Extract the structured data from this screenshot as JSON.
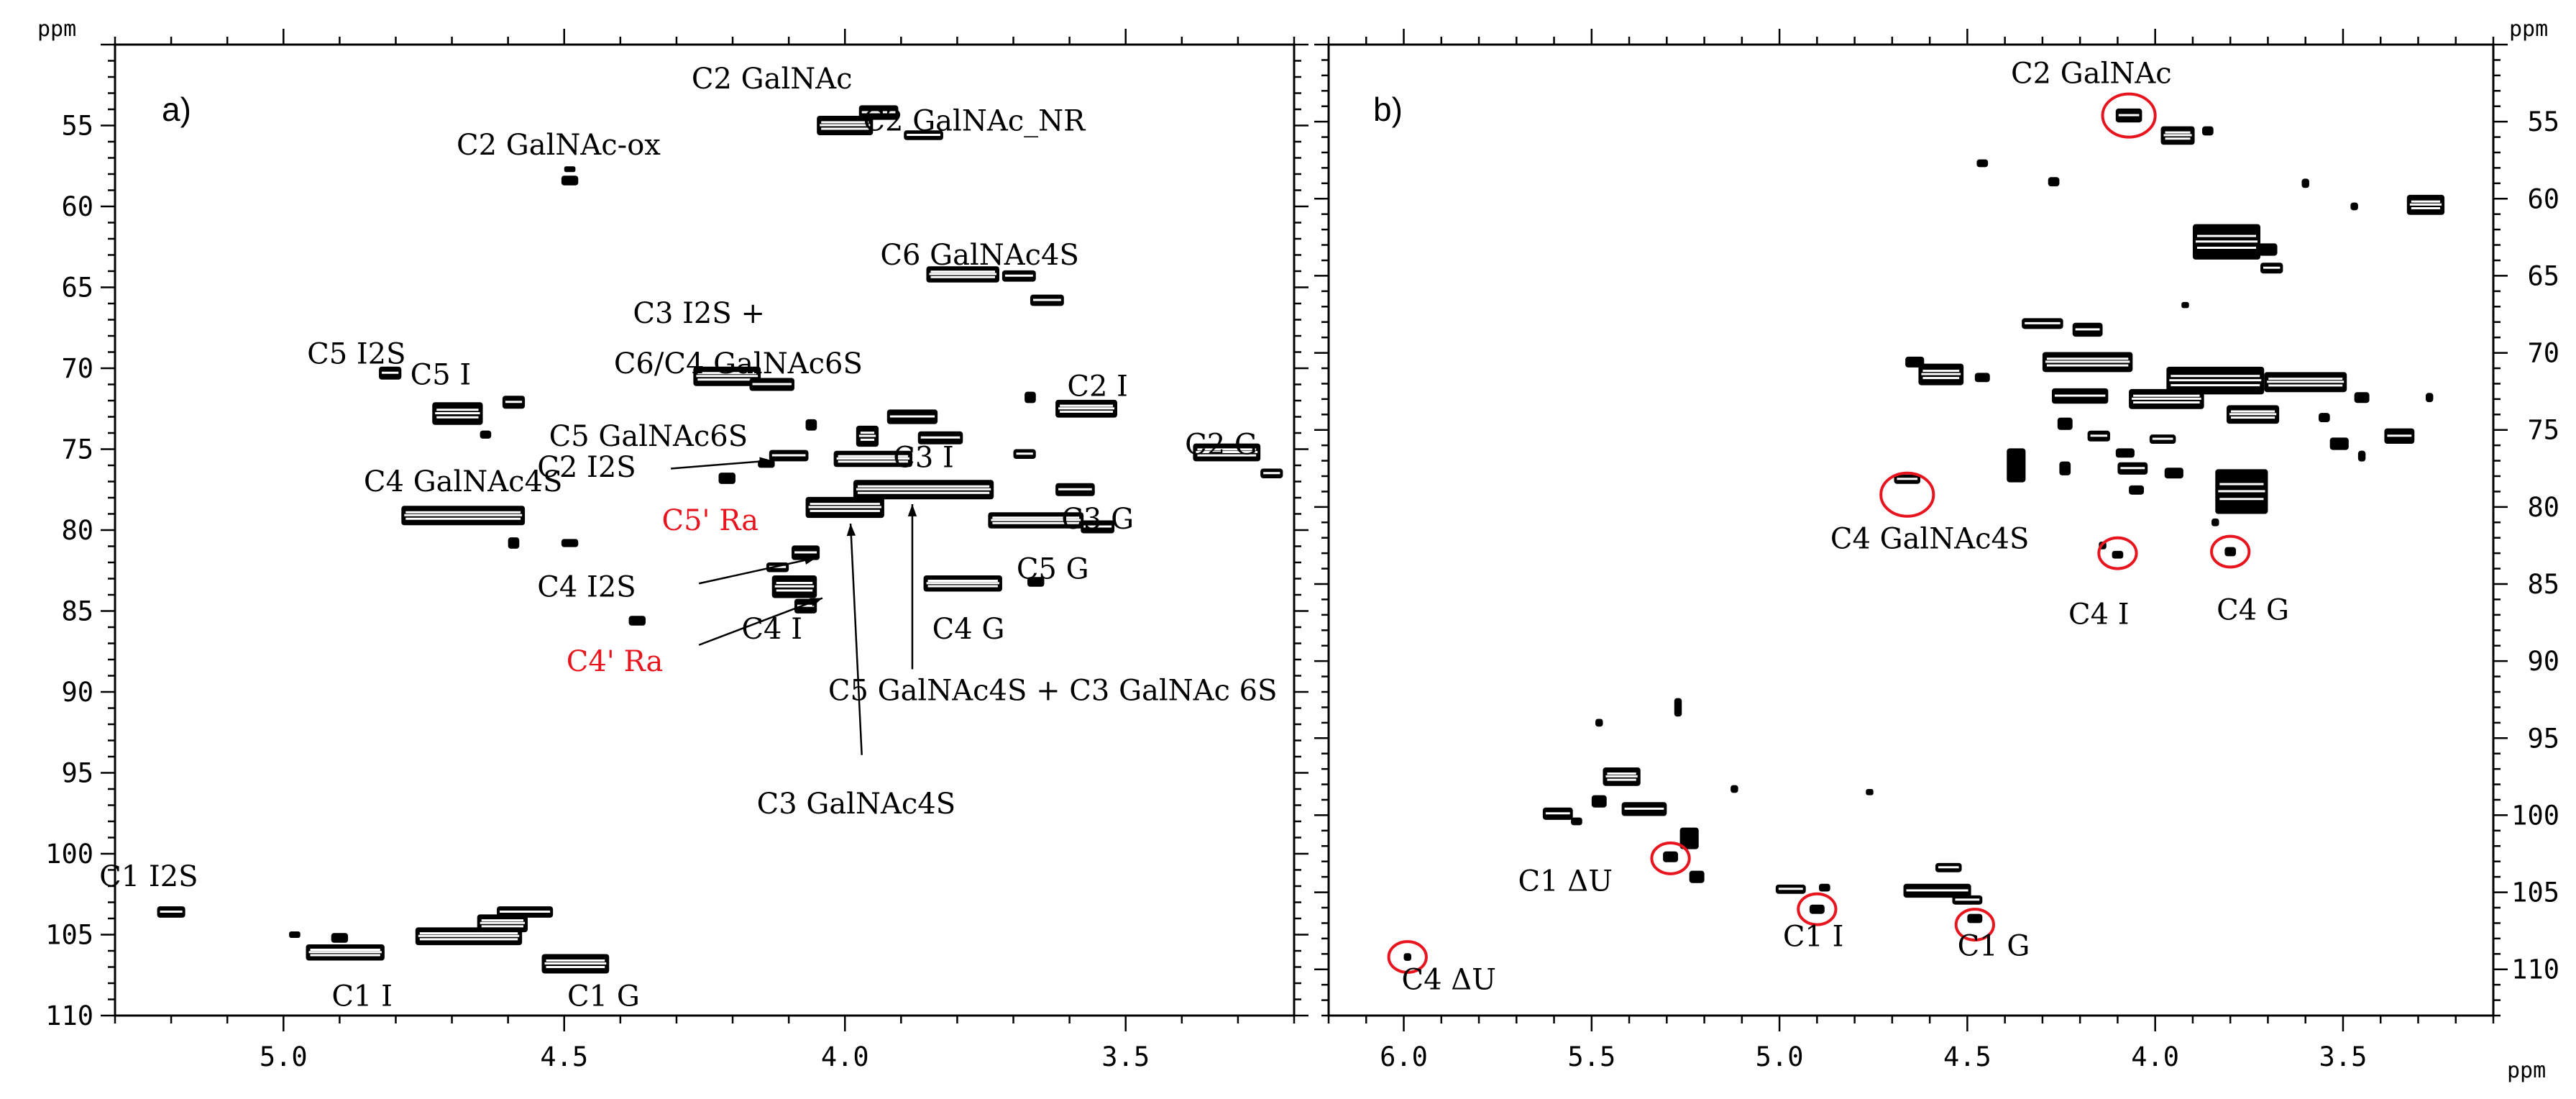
{
  "chart_data": [
    {
      "type": "scatter",
      "panel": "a)",
      "xlabel": "ppm",
      "ylabel": "ppm",
      "xlim": [
        5.3,
        3.2
      ],
      "ylim": [
        50,
        110
      ],
      "xticks": [
        "5.0",
        "4.5",
        "4.0",
        "3.5"
      ],
      "yticks": [
        "55",
        "60",
        "65",
        "70",
        "75",
        "80",
        "85",
        "90",
        "95",
        "100",
        "105",
        "110"
      ],
      "labels": [
        {
          "text": "C2 GalNAc",
          "x": 4.13,
          "y": 52.7
        },
        {
          "text": "C2 GalNAc_NR",
          "x": 3.77,
          "y": 55.3
        },
        {
          "text": "C2 GalNAc-ox",
          "x": 4.51,
          "y": 56.8
        },
        {
          "text": "C6 GalNAc4S",
          "x": 3.76,
          "y": 63.6
        },
        {
          "text": "C3  I2S +",
          "x": 4.26,
          "y": 67.2
        },
        {
          "text": "C6/C4 GalNAc6S",
          "x": 4.19,
          "y": 70.3
        },
        {
          "text": "C5  I2S",
          "x": 4.87,
          "y": 69.7
        },
        {
          "text": "C5 I",
          "x": 4.72,
          "y": 71.0
        },
        {
          "text": "C2  I",
          "x": 3.55,
          "y": 71.7
        },
        {
          "text": "C5 GalNAc6S",
          "x": 4.35,
          "y": 74.8
        },
        {
          "text": "C2  G",
          "x": 3.33,
          "y": 75.3
        },
        {
          "text": "C3  I",
          "x": 3.86,
          "y": 76.1
        },
        {
          "text": "C2 I2S",
          "x": 4.46,
          "y": 76.7
        },
        {
          "text": "C4 GalNAc4S",
          "x": 4.68,
          "y": 77.6
        },
        {
          "text": "C3  G",
          "x": 3.55,
          "y": 79.9
        },
        {
          "text": "C5' Ra",
          "x": 4.24,
          "y": 80.0
        },
        {
          "text": "C5  G",
          "x": 3.63,
          "y": 83.0
        },
        {
          "text": "C4  I2S",
          "x": 4.46,
          "y": 84.1
        },
        {
          "text": "C4 I",
          "x": 4.13,
          "y": 86.7
        },
        {
          "text": "C4  G",
          "x": 3.78,
          "y": 86.7
        },
        {
          "text": "C4' Ra",
          "x": 4.41,
          "y": 88.7
        },
        {
          "text": "C5 GalNAc4S + C3 GalNAc 6S",
          "x": 3.63,
          "y": 90.5
        },
        {
          "text": "C3 GalNAc4S",
          "x": 3.98,
          "y": 97.5
        },
        {
          "text": "C1 I2S",
          "x": 5.24,
          "y": 102.0
        },
        {
          "text": "C1  I",
          "x": 4.86,
          "y": 109.4
        },
        {
          "text": "C1  G",
          "x": 4.43,
          "y": 109.4
        }
      ],
      "red_labels": [
        "C5' Ra",
        "C4' Ra"
      ],
      "arrows": [
        {
          "from": [
            4.31,
            76.2
          ],
          "to": [
            4.13,
            75.7
          ]
        },
        {
          "from": [
            4.26,
            83.3
          ],
          "to": [
            4.05,
            81.7
          ]
        },
        {
          "from": [
            4.26,
            87.1
          ],
          "to": [
            4.04,
            84.2
          ]
        },
        {
          "from": [
            3.97,
            93.9
          ],
          "to": [
            3.99,
            79.6
          ]
        },
        {
          "from": [
            3.88,
            88.6
          ],
          "to": [
            3.88,
            78.4
          ]
        }
      ],
      "peaks": [
        {
          "x": 4.0,
          "y": 55.0,
          "w": 0.1,
          "h": 1.2
        },
        {
          "x": 3.94,
          "y": 54.2,
          "w": 0.07,
          "h": 0.9
        },
        {
          "x": 3.86,
          "y": 55.6,
          "w": 0.07,
          "h": 0.6
        },
        {
          "x": 4.49,
          "y": 58.4,
          "w": 0.03,
          "h": 0.6
        },
        {
          "x": 4.49,
          "y": 57.7,
          "w": 0.02,
          "h": 0.3
        },
        {
          "x": 3.79,
          "y": 64.2,
          "w": 0.13,
          "h": 1.0
        },
        {
          "x": 3.69,
          "y": 64.3,
          "w": 0.06,
          "h": 0.7
        },
        {
          "x": 3.64,
          "y": 65.8,
          "w": 0.06,
          "h": 0.7
        },
        {
          "x": 4.21,
          "y": 70.5,
          "w": 0.12,
          "h": 1.2
        },
        {
          "x": 4.13,
          "y": 71.0,
          "w": 0.08,
          "h": 0.8
        },
        {
          "x": 4.81,
          "y": 70.3,
          "w": 0.04,
          "h": 0.8
        },
        {
          "x": 4.69,
          "y": 72.8,
          "w": 0.09,
          "h": 1.4
        },
        {
          "x": 4.59,
          "y": 72.1,
          "w": 0.04,
          "h": 0.8
        },
        {
          "x": 4.64,
          "y": 74.1,
          "w": 0.02,
          "h": 0.5
        },
        {
          "x": 3.57,
          "y": 72.5,
          "w": 0.11,
          "h": 1.1
        },
        {
          "x": 3.67,
          "y": 71.8,
          "w": 0.02,
          "h": 0.7
        },
        {
          "x": 3.32,
          "y": 75.2,
          "w": 0.12,
          "h": 1.1
        },
        {
          "x": 3.24,
          "y": 76.5,
          "w": 0.04,
          "h": 0.6
        },
        {
          "x": 4.06,
          "y": 73.5,
          "w": 0.02,
          "h": 0.7
        },
        {
          "x": 3.96,
          "y": 74.2,
          "w": 0.04,
          "h": 1.3
        },
        {
          "x": 3.88,
          "y": 73.0,
          "w": 0.09,
          "h": 0.9
        },
        {
          "x": 3.83,
          "y": 74.3,
          "w": 0.08,
          "h": 0.8
        },
        {
          "x": 3.95,
          "y": 75.6,
          "w": 0.14,
          "h": 1.0
        },
        {
          "x": 3.68,
          "y": 75.3,
          "w": 0.04,
          "h": 0.6
        },
        {
          "x": 4.1,
          "y": 75.4,
          "w": 0.07,
          "h": 0.7
        },
        {
          "x": 4.14,
          "y": 75.9,
          "w": 0.03,
          "h": 0.5
        },
        {
          "x": 4.21,
          "y": 76.8,
          "w": 0.03,
          "h": 0.7
        },
        {
          "x": 3.86,
          "y": 77.5,
          "w": 0.25,
          "h": 1.2
        },
        {
          "x": 3.59,
          "y": 77.5,
          "w": 0.07,
          "h": 0.8
        },
        {
          "x": 4.0,
          "y": 78.6,
          "w": 0.14,
          "h": 1.3
        },
        {
          "x": 4.68,
          "y": 79.1,
          "w": 0.22,
          "h": 1.2
        },
        {
          "x": 4.59,
          "y": 80.8,
          "w": 0.02,
          "h": 0.7
        },
        {
          "x": 4.49,
          "y": 80.8,
          "w": 0.03,
          "h": 0.5
        },
        {
          "x": 3.66,
          "y": 79.4,
          "w": 0.17,
          "h": 1.0
        },
        {
          "x": 3.55,
          "y": 79.8,
          "w": 0.06,
          "h": 0.8
        },
        {
          "x": 4.07,
          "y": 81.4,
          "w": 0.05,
          "h": 0.9
        },
        {
          "x": 4.09,
          "y": 83.5,
          "w": 0.08,
          "h": 1.4
        },
        {
          "x": 4.07,
          "y": 84.7,
          "w": 0.04,
          "h": 0.9
        },
        {
          "x": 4.12,
          "y": 82.3,
          "w": 0.04,
          "h": 0.6
        },
        {
          "x": 3.79,
          "y": 83.3,
          "w": 0.14,
          "h": 1.0
        },
        {
          "x": 3.66,
          "y": 83.2,
          "w": 0.03,
          "h": 0.6
        },
        {
          "x": 4.37,
          "y": 85.6,
          "w": 0.03,
          "h": 0.6
        },
        {
          "x": 5.2,
          "y": 103.6,
          "w": 0.05,
          "h": 0.7
        },
        {
          "x": 4.9,
          "y": 105.2,
          "w": 0.03,
          "h": 0.6
        },
        {
          "x": 4.98,
          "y": 105.0,
          "w": 0.02,
          "h": 0.4
        },
        {
          "x": 4.89,
          "y": 106.1,
          "w": 0.14,
          "h": 1.0
        },
        {
          "x": 4.61,
          "y": 104.3,
          "w": 0.09,
          "h": 1.1
        },
        {
          "x": 4.57,
          "y": 103.6,
          "w": 0.1,
          "h": 0.7
        },
        {
          "x": 4.67,
          "y": 105.1,
          "w": 0.19,
          "h": 1.1
        },
        {
          "x": 4.48,
          "y": 106.8,
          "w": 0.12,
          "h": 1.2
        }
      ]
    },
    {
      "type": "scatter",
      "panel": "b)",
      "xlabel": "ppm",
      "ylabel": "ppm",
      "xlim": [
        6.2,
        3.1
      ],
      "ylim": [
        50,
        113
      ],
      "xticks": [
        "6.0",
        "5.5",
        "5.0",
        "4.5",
        "4.0",
        "3.5"
      ],
      "yticks": [
        "55",
        "60",
        "65",
        "70",
        "75",
        "80",
        "85",
        "90",
        "95",
        "100",
        "105",
        "110"
      ],
      "labels": [
        {
          "text": "C2 GalNAc",
          "x": 4.17,
          "y": 52.5
        },
        {
          "text": "C4 GalNAc4S",
          "x": 4.6,
          "y": 82.7
        },
        {
          "text": "C4  I",
          "x": 4.15,
          "y": 87.6
        },
        {
          "text": "C4  G",
          "x": 3.74,
          "y": 87.3
        },
        {
          "text": "C1  ΔU",
          "x": 5.57,
          "y": 104.9
        },
        {
          "text": "C1  I",
          "x": 4.91,
          "y": 108.5
        },
        {
          "text": "C1  G",
          "x": 4.43,
          "y": 109.1
        },
        {
          "text": "C4 ΔU",
          "x": 5.88,
          "y": 111.3
        }
      ],
      "circles": [
        {
          "x": 4.07,
          "y": 54.6,
          "r": 0.07
        },
        {
          "x": 4.66,
          "y": 79.2,
          "r": 0.07
        },
        {
          "x": 4.1,
          "y": 83.0,
          "r": 0.05
        },
        {
          "x": 3.8,
          "y": 82.9,
          "r": 0.05
        },
        {
          "x": 5.29,
          "y": 102.8,
          "r": 0.05
        },
        {
          "x": 4.9,
          "y": 106.1,
          "r": 0.05
        },
        {
          "x": 4.48,
          "y": 107.1,
          "r": 0.05
        },
        {
          "x": 5.99,
          "y": 109.2,
          "r": 0.05
        }
      ],
      "peaks": [
        {
          "x": 4.07,
          "y": 54.6,
          "w": 0.07,
          "h": 0.9
        },
        {
          "x": 3.94,
          "y": 55.9,
          "w": 0.09,
          "h": 1.2
        },
        {
          "x": 3.86,
          "y": 55.6,
          "w": 0.03,
          "h": 0.6
        },
        {
          "x": 4.46,
          "y": 57.7,
          "w": 0.03,
          "h": 0.5
        },
        {
          "x": 4.27,
          "y": 58.9,
          "w": 0.03,
          "h": 0.6
        },
        {
          "x": 3.6,
          "y": 59.0,
          "w": 0.02,
          "h": 0.6
        },
        {
          "x": 3.28,
          "y": 60.4,
          "w": 0.1,
          "h": 1.3
        },
        {
          "x": 3.47,
          "y": 60.5,
          "w": 0.02,
          "h": 0.5
        },
        {
          "x": 3.81,
          "y": 62.8,
          "w": 0.18,
          "h": 2.3
        },
        {
          "x": 3.7,
          "y": 63.3,
          "w": 0.05,
          "h": 0.8
        },
        {
          "x": 3.69,
          "y": 64.5,
          "w": 0.06,
          "h": 0.7
        },
        {
          "x": 3.92,
          "y": 66.9,
          "w": 0.02,
          "h": 0.4
        },
        {
          "x": 4.3,
          "y": 68.1,
          "w": 0.11,
          "h": 0.7
        },
        {
          "x": 4.18,
          "y": 68.5,
          "w": 0.08,
          "h": 0.9
        },
        {
          "x": 4.18,
          "y": 70.6,
          "w": 0.24,
          "h": 1.3
        },
        {
          "x": 3.84,
          "y": 71.8,
          "w": 0.26,
          "h": 1.8
        },
        {
          "x": 3.6,
          "y": 71.9,
          "w": 0.22,
          "h": 1.3
        },
        {
          "x": 3.97,
          "y": 73.0,
          "w": 0.2,
          "h": 1.3
        },
        {
          "x": 3.74,
          "y": 74.0,
          "w": 0.14,
          "h": 1.2
        },
        {
          "x": 4.2,
          "y": 72.8,
          "w": 0.15,
          "h": 1.0
        },
        {
          "x": 4.57,
          "y": 71.4,
          "w": 0.12,
          "h": 1.4
        },
        {
          "x": 4.64,
          "y": 70.6,
          "w": 0.05,
          "h": 0.7
        },
        {
          "x": 4.46,
          "y": 71.6,
          "w": 0.04,
          "h": 0.6
        },
        {
          "x": 3.45,
          "y": 72.9,
          "w": 0.04,
          "h": 0.7
        },
        {
          "x": 3.27,
          "y": 72.9,
          "w": 0.02,
          "h": 0.6
        },
        {
          "x": 3.35,
          "y": 75.4,
          "w": 0.08,
          "h": 1.0
        },
        {
          "x": 3.51,
          "y": 75.9,
          "w": 0.05,
          "h": 0.8
        },
        {
          "x": 3.55,
          "y": 74.2,
          "w": 0.03,
          "h": 0.6
        },
        {
          "x": 4.24,
          "y": 74.6,
          "w": 0.04,
          "h": 0.8
        },
        {
          "x": 4.15,
          "y": 75.4,
          "w": 0.06,
          "h": 0.7
        },
        {
          "x": 3.98,
          "y": 75.6,
          "w": 0.07,
          "h": 0.6
        },
        {
          "x": 4.37,
          "y": 77.3,
          "w": 0.05,
          "h": 2.2
        },
        {
          "x": 4.24,
          "y": 77.5,
          "w": 0.03,
          "h": 0.9
        },
        {
          "x": 4.06,
          "y": 77.5,
          "w": 0.08,
          "h": 0.8
        },
        {
          "x": 4.08,
          "y": 76.5,
          "w": 0.05,
          "h": 0.6
        },
        {
          "x": 3.95,
          "y": 77.8,
          "w": 0.05,
          "h": 0.7
        },
        {
          "x": 3.77,
          "y": 79.0,
          "w": 0.14,
          "h": 2.9
        },
        {
          "x": 3.45,
          "y": 76.7,
          "w": 0.02,
          "h": 0.7
        },
        {
          "x": 4.05,
          "y": 78.9,
          "w": 0.04,
          "h": 0.6
        },
        {
          "x": 4.66,
          "y": 78.2,
          "w": 0.07,
          "h": 0.6
        },
        {
          "x": 3.84,
          "y": 81.0,
          "w": 0.02,
          "h": 0.5
        },
        {
          "x": 4.14,
          "y": 82.5,
          "w": 0.02,
          "h": 0.5
        },
        {
          "x": 4.1,
          "y": 83.1,
          "w": 0.03,
          "h": 0.5
        },
        {
          "x": 3.8,
          "y": 82.9,
          "w": 0.03,
          "h": 0.6
        },
        {
          "x": 5.27,
          "y": 93.0,
          "w": 0.02,
          "h": 1.2
        },
        {
          "x": 5.48,
          "y": 94.0,
          "w": 0.02,
          "h": 0.5
        },
        {
          "x": 5.42,
          "y": 97.5,
          "w": 0.1,
          "h": 1.2
        },
        {
          "x": 5.48,
          "y": 99.1,
          "w": 0.04,
          "h": 0.8
        },
        {
          "x": 5.36,
          "y": 99.6,
          "w": 0.12,
          "h": 0.9
        },
        {
          "x": 5.59,
          "y": 99.9,
          "w": 0.08,
          "h": 0.8
        },
        {
          "x": 5.54,
          "y": 100.4,
          "w": 0.03,
          "h": 0.5
        },
        {
          "x": 5.24,
          "y": 101.5,
          "w": 0.05,
          "h": 1.4
        },
        {
          "x": 5.22,
          "y": 104.0,
          "w": 0.04,
          "h": 0.8
        },
        {
          "x": 5.29,
          "y": 102.7,
          "w": 0.04,
          "h": 0.7
        },
        {
          "x": 5.12,
          "y": 98.3,
          "w": 0.02,
          "h": 0.5
        },
        {
          "x": 4.76,
          "y": 98.5,
          "w": 0.02,
          "h": 0.4
        },
        {
          "x": 4.97,
          "y": 104.8,
          "w": 0.08,
          "h": 0.6
        },
        {
          "x": 4.88,
          "y": 104.7,
          "w": 0.03,
          "h": 0.5
        },
        {
          "x": 4.9,
          "y": 106.1,
          "w": 0.04,
          "h": 0.6
        },
        {
          "x": 4.55,
          "y": 103.4,
          "w": 0.07,
          "h": 0.6
        },
        {
          "x": 4.58,
          "y": 104.9,
          "w": 0.18,
          "h": 0.9
        },
        {
          "x": 4.5,
          "y": 105.5,
          "w": 0.08,
          "h": 0.6
        },
        {
          "x": 4.48,
          "y": 106.7,
          "w": 0.04,
          "h": 0.6
        },
        {
          "x": 5.99,
          "y": 109.2,
          "w": 0.02,
          "h": 0.5
        }
      ]
    }
  ]
}
